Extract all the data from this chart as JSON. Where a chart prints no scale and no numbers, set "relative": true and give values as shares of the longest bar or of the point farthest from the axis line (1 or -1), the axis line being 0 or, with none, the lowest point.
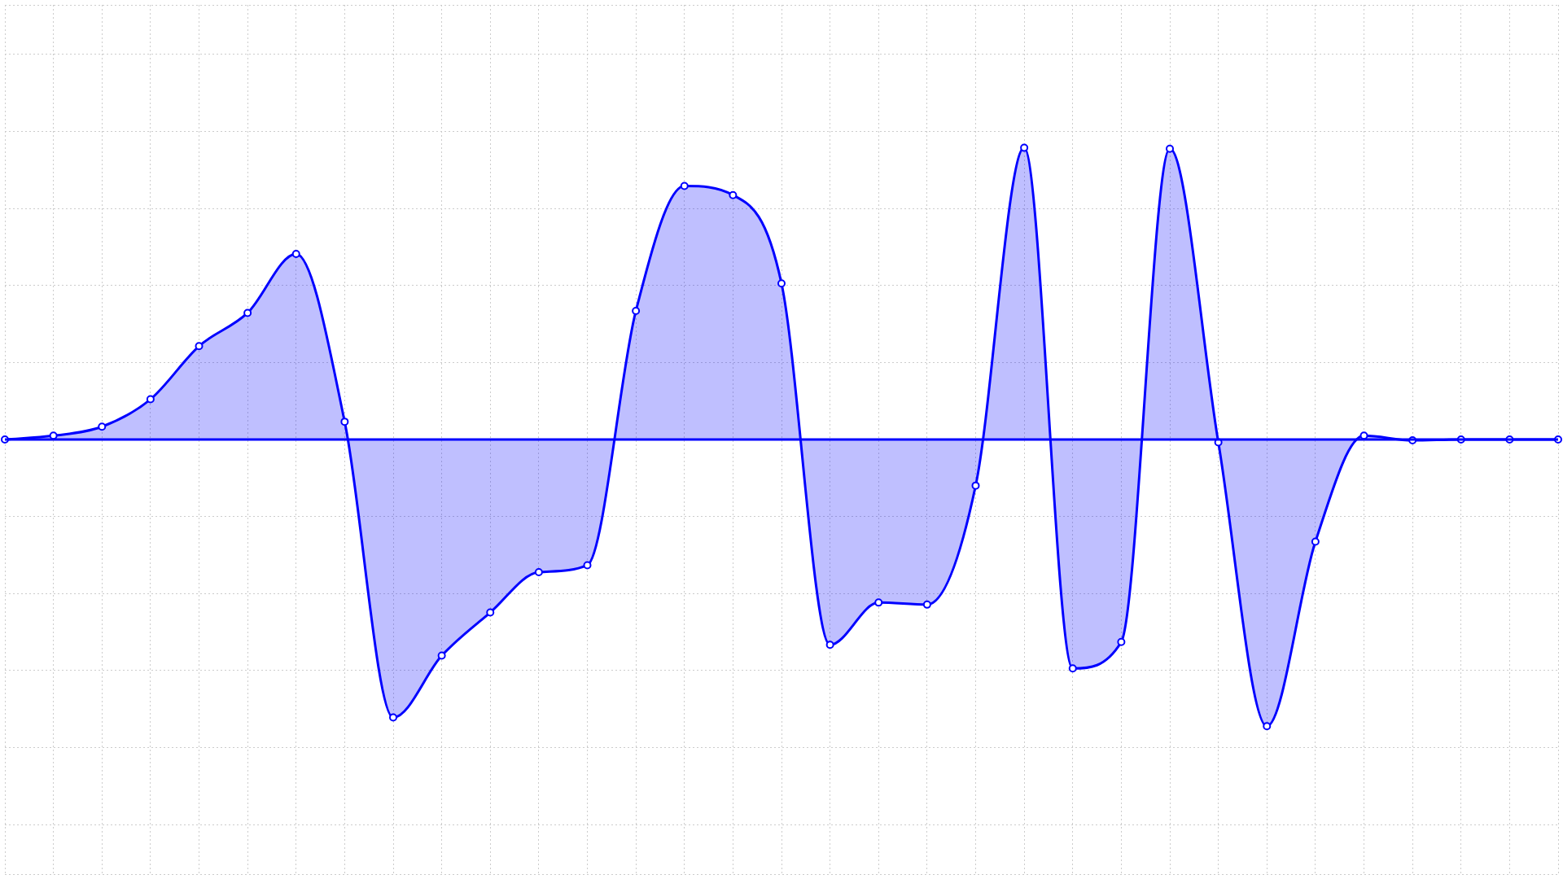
{
  "chart_data": {
    "type": "area",
    "relative": true,
    "categories": [
      null,
      null,
      null,
      null,
      null,
      null,
      null,
      null,
      null,
      null,
      null,
      null,
      null,
      null,
      null,
      null,
      null,
      null,
      null,
      null,
      null,
      null,
      null,
      null,
      null,
      null,
      null,
      null,
      null,
      null,
      null,
      null,
      null
    ],
    "series": [
      {
        "color": "#0000ff",
        "values": [
          0,
          0.013,
          0.044,
          0.138,
          0.32,
          0.434,
          0.636,
          0.061,
          -0.953,
          -0.741,
          -0.593,
          -0.455,
          -0.431,
          0.441,
          0.869,
          0.838,
          0.535,
          -0.704,
          -0.559,
          -0.566,
          -0.158,
          1,
          -0.785,
          -0.694,
          0.997,
          -0.01,
          -0.983,
          -0.35,
          0.013,
          -0.003,
          0,
          0,
          0
        ]
      }
    ],
    "grid": true,
    "marker": "circle",
    "line_style": "solid"
  }
}
